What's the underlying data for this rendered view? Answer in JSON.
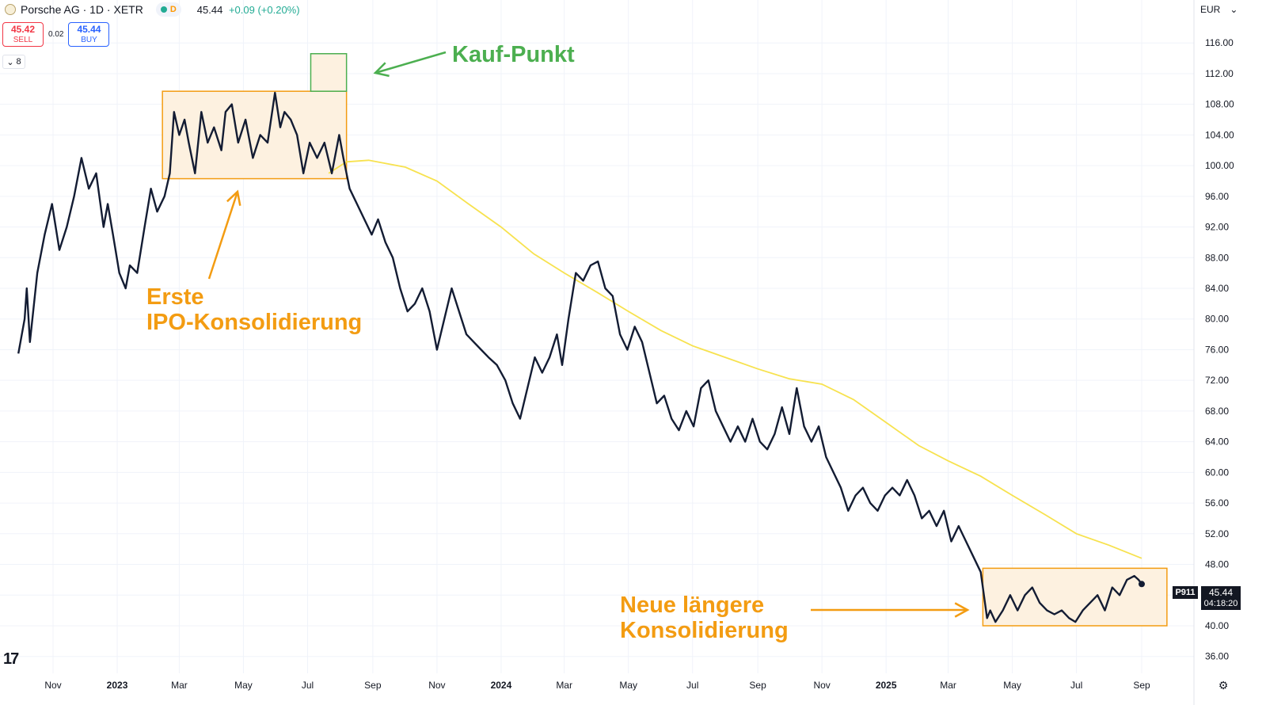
{
  "header": {
    "symbol": "Porsche AG · 1D · XETR",
    "session_badge": "D",
    "last": "45.44",
    "change": "+0.09 (+0.20%)"
  },
  "trade": {
    "sell_price": "45.42",
    "sell_label": "SELL",
    "spread": "0.02",
    "buy_price": "45.44",
    "buy_label": "BUY"
  },
  "indicators_count": "8",
  "currency": "EUR",
  "price_tag": {
    "ticker": "P911",
    "price": "45.44",
    "countdown": "04:18:20"
  },
  "annotations": {
    "buy_point": "Kauf-Punkt",
    "first_consolidation_line1": "Erste",
    "first_consolidation_line2": "IPO-Konsolidierung",
    "new_consolidation_line1": "Neue längere",
    "new_consolidation_line2": "Konsolidierung"
  },
  "colors": {
    "price_line": "#131c33",
    "ma_line": "#f7e24f",
    "annotation_orange": "#f39c12",
    "annotation_green": "#4caf50",
    "box_fill": "#fdf1e0"
  },
  "chart_data": {
    "type": "line",
    "title": "",
    "xlabel": "",
    "ylabel": "",
    "y_ticks": [
      36,
      40,
      44,
      48,
      52,
      56,
      60,
      64,
      68,
      72,
      76,
      80,
      84,
      88,
      92,
      96,
      100,
      104,
      108,
      112,
      116
    ],
    "ylim": [
      33.8,
      121.6
    ],
    "x_ticks": [
      {
        "label": "Nov",
        "x": "2022-11-01",
        "year": false
      },
      {
        "label": "2023",
        "x": "2023-01-01",
        "year": true
      },
      {
        "label": "Mar",
        "x": "2023-03-01",
        "year": false
      },
      {
        "label": "May",
        "x": "2023-05-01",
        "year": false
      },
      {
        "label": "Jul",
        "x": "2023-07-01",
        "year": false
      },
      {
        "label": "Sep",
        "x": "2023-09-01",
        "year": false
      },
      {
        "label": "Nov",
        "x": "2023-11-01",
        "year": false
      },
      {
        "label": "2024",
        "x": "2024-01-01",
        "year": true
      },
      {
        "label": "Mar",
        "x": "2024-03-01",
        "year": false
      },
      {
        "label": "May",
        "x": "2024-05-01",
        "year": false
      },
      {
        "label": "Jul",
        "x": "2024-07-01",
        "year": false
      },
      {
        "label": "Sep",
        "x": "2024-09-01",
        "year": false
      },
      {
        "label": "Nov",
        "x": "2024-11-01",
        "year": false
      },
      {
        "label": "2025",
        "x": "2025-01-01",
        "year": true
      },
      {
        "label": "Mar",
        "x": "2025-03-01",
        "year": false
      },
      {
        "label": "May",
        "x": "2025-05-01",
        "year": false
      },
      {
        "label": "Jul",
        "x": "2025-07-01",
        "year": false
      },
      {
        "label": "Sep",
        "x": "2025-09-01",
        "year": false
      }
    ],
    "series": [
      {
        "values": [
          [
            "2022-09-29",
            75.5
          ],
          [
            "2022-10-05",
            80.0
          ],
          [
            "2022-10-07",
            84.0
          ],
          [
            "2022-10-10",
            77.0
          ],
          [
            "2022-10-17",
            86.0
          ],
          [
            "2022-10-24",
            91.0
          ],
          [
            "2022-10-31",
            95.0
          ],
          [
            "2022-11-07",
            89.0
          ],
          [
            "2022-11-14",
            92.0
          ],
          [
            "2022-11-21",
            96.0
          ],
          [
            "2022-11-28",
            101.0
          ],
          [
            "2022-12-05",
            97.0
          ],
          [
            "2022-12-12",
            99.0
          ],
          [
            "2022-12-19",
            92.0
          ],
          [
            "2022-12-23",
            95.0
          ],
          [
            "2022-12-28",
            91.0
          ],
          [
            "2023-01-03",
            86.0
          ],
          [
            "2023-01-09",
            84.0
          ],
          [
            "2023-01-13",
            87.0
          ],
          [
            "2023-01-20",
            86.0
          ],
          [
            "2023-01-27",
            92.0
          ],
          [
            "2023-02-02",
            97.0
          ],
          [
            "2023-02-08",
            94.0
          ],
          [
            "2023-02-15",
            96.0
          ],
          [
            "2023-02-20",
            99.0
          ],
          [
            "2023-02-24",
            107.0
          ],
          [
            "2023-03-01",
            104.0
          ],
          [
            "2023-03-06",
            106.0
          ],
          [
            "2023-03-10",
            103.0
          ],
          [
            "2023-03-16",
            99.0
          ],
          [
            "2023-03-22",
            107.0
          ],
          [
            "2023-03-28",
            103.0
          ],
          [
            "2023-04-03",
            105.0
          ],
          [
            "2023-04-10",
            102.0
          ],
          [
            "2023-04-14",
            107.0
          ],
          [
            "2023-04-20",
            108.0
          ],
          [
            "2023-04-26",
            103.0
          ],
          [
            "2023-05-03",
            106.0
          ],
          [
            "2023-05-10",
            101.0
          ],
          [
            "2023-05-17",
            104.0
          ],
          [
            "2023-05-24",
            103.0
          ],
          [
            "2023-05-31",
            109.5
          ],
          [
            "2023-06-05",
            105.0
          ],
          [
            "2023-06-09",
            107.0
          ],
          [
            "2023-06-15",
            106.0
          ],
          [
            "2023-06-21",
            104.0
          ],
          [
            "2023-06-27",
            99.0
          ],
          [
            "2023-07-03",
            103.0
          ],
          [
            "2023-07-10",
            101.0
          ],
          [
            "2023-07-17",
            103.0
          ],
          [
            "2023-07-24",
            99.0
          ],
          [
            "2023-07-31",
            104.0
          ],
          [
            "2023-08-04",
            101.0
          ],
          [
            "2023-08-10",
            97.0
          ],
          [
            "2023-08-17",
            95.0
          ],
          [
            "2023-08-24",
            93.0
          ],
          [
            "2023-08-31",
            91.0
          ],
          [
            "2023-09-06",
            93.0
          ],
          [
            "2023-09-13",
            90.0
          ],
          [
            "2023-09-20",
            88.0
          ],
          [
            "2023-09-27",
            84.0
          ],
          [
            "2023-10-04",
            81.0
          ],
          [
            "2023-10-11",
            82.0
          ],
          [
            "2023-10-18",
            84.0
          ],
          [
            "2023-10-25",
            81.0
          ],
          [
            "2023-11-01",
            76.0
          ],
          [
            "2023-11-08",
            80.0
          ],
          [
            "2023-11-15",
            84.0
          ],
          [
            "2023-11-22",
            81.0
          ],
          [
            "2023-11-29",
            78.0
          ],
          [
            "2023-12-06",
            77.0
          ],
          [
            "2023-12-13",
            76.0
          ],
          [
            "2023-12-20",
            75.0
          ],
          [
            "2023-12-28",
            74.0
          ],
          [
            "2024-01-05",
            72.0
          ],
          [
            "2024-01-12",
            69.0
          ],
          [
            "2024-01-19",
            67.0
          ],
          [
            "2024-01-26",
            71.0
          ],
          [
            "2024-02-02",
            75.0
          ],
          [
            "2024-02-09",
            73.0
          ],
          [
            "2024-02-16",
            75.0
          ],
          [
            "2024-02-23",
            78.0
          ],
          [
            "2024-02-28",
            74.0
          ],
          [
            "2024-03-05",
            80.0
          ],
          [
            "2024-03-12",
            86.0
          ],
          [
            "2024-03-19",
            85.0
          ],
          [
            "2024-03-26",
            87.0
          ],
          [
            "2024-04-02",
            87.5
          ],
          [
            "2024-04-09",
            84.0
          ],
          [
            "2024-04-16",
            83.0
          ],
          [
            "2024-04-23",
            78.0
          ],
          [
            "2024-04-30",
            76.0
          ],
          [
            "2024-05-07",
            79.0
          ],
          [
            "2024-05-14",
            77.0
          ],
          [
            "2024-05-21",
            73.0
          ],
          [
            "2024-05-28",
            69.0
          ],
          [
            "2024-06-04",
            70.0
          ],
          [
            "2024-06-11",
            67.0
          ],
          [
            "2024-06-18",
            65.5
          ],
          [
            "2024-06-25",
            68.0
          ],
          [
            "2024-07-02",
            66.0
          ],
          [
            "2024-07-09",
            71.0
          ],
          [
            "2024-07-16",
            72.0
          ],
          [
            "2024-07-23",
            68.0
          ],
          [
            "2024-07-30",
            66.0
          ],
          [
            "2024-08-06",
            64.0
          ],
          [
            "2024-08-13",
            66.0
          ],
          [
            "2024-08-20",
            64.0
          ],
          [
            "2024-08-27",
            67.0
          ],
          [
            "2024-09-03",
            64.0
          ],
          [
            "2024-09-10",
            63.0
          ],
          [
            "2024-09-17",
            65.0
          ],
          [
            "2024-09-24",
            68.5
          ],
          [
            "2024-10-01",
            65.0
          ],
          [
            "2024-10-08",
            71.0
          ],
          [
            "2024-10-15",
            66.0
          ],
          [
            "2024-10-22",
            64.0
          ],
          [
            "2024-10-29",
            66.0
          ],
          [
            "2024-11-05",
            62.0
          ],
          [
            "2024-11-12",
            60.0
          ],
          [
            "2024-11-19",
            58.0
          ],
          [
            "2024-11-26",
            55.0
          ],
          [
            "2024-12-03",
            57.0
          ],
          [
            "2024-12-10",
            58.0
          ],
          [
            "2024-12-17",
            56.0
          ],
          [
            "2024-12-24",
            55.0
          ],
          [
            "2024-12-31",
            57.0
          ],
          [
            "2025-01-07",
            58.0
          ],
          [
            "2025-01-14",
            57.0
          ],
          [
            "2025-01-21",
            59.0
          ],
          [
            "2025-01-28",
            57.0
          ],
          [
            "2025-02-04",
            54.0
          ],
          [
            "2025-02-11",
            55.0
          ],
          [
            "2025-02-18",
            53.0
          ],
          [
            "2025-02-25",
            55.0
          ],
          [
            "2025-03-04",
            51.0
          ],
          [
            "2025-03-11",
            53.0
          ],
          [
            "2025-03-18",
            51.0
          ],
          [
            "2025-03-25",
            49.0
          ],
          [
            "2025-04-01",
            47.0
          ],
          [
            "2025-04-07",
            41.0
          ],
          [
            "2025-04-10",
            42.0
          ],
          [
            "2025-04-15",
            40.5
          ],
          [
            "2025-04-22",
            42.0
          ],
          [
            "2025-04-29",
            44.0
          ],
          [
            "2025-05-06",
            42.0
          ],
          [
            "2025-05-13",
            44.0
          ],
          [
            "2025-05-20",
            45.0
          ],
          [
            "2025-05-27",
            43.0
          ],
          [
            "2025-06-03",
            42.0
          ],
          [
            "2025-06-10",
            41.5
          ],
          [
            "2025-06-17",
            42.0
          ],
          [
            "2025-06-24",
            41.0
          ],
          [
            "2025-06-30",
            40.5
          ],
          [
            "2025-07-07",
            42.0
          ],
          [
            "2025-07-14",
            43.0
          ],
          [
            "2025-07-21",
            44.0
          ],
          [
            "2025-07-28",
            42.0
          ],
          [
            "2025-08-04",
            45.0
          ],
          [
            "2025-08-11",
            44.0
          ],
          [
            "2025-08-18",
            46.0
          ],
          [
            "2025-08-25",
            46.5
          ],
          [
            "2025-08-29",
            46.0
          ],
          [
            "2025-09-01",
            45.44
          ]
        ]
      },
      {
        "values": [
          [
            "2023-07-21",
            99.0
          ],
          [
            "2023-08-07",
            100.5
          ],
          [
            "2023-08-28",
            100.7
          ],
          [
            "2023-10-02",
            99.8
          ],
          [
            "2023-11-01",
            98.0
          ],
          [
            "2023-12-01",
            95.0
          ],
          [
            "2024-01-01",
            92.0
          ],
          [
            "2024-02-01",
            88.5
          ],
          [
            "2024-03-01",
            86.0
          ],
          [
            "2024-04-01",
            83.5
          ],
          [
            "2024-05-01",
            81.0
          ],
          [
            "2024-06-01",
            78.5
          ],
          [
            "2024-07-01",
            76.5
          ],
          [
            "2024-08-01",
            75.0
          ],
          [
            "2024-09-01",
            73.5
          ],
          [
            "2024-10-01",
            72.2
          ],
          [
            "2024-11-01",
            71.5
          ],
          [
            "2024-12-01",
            69.5
          ],
          [
            "2025-01-01",
            66.5
          ],
          [
            "2025-02-01",
            63.5
          ],
          [
            "2025-03-01",
            61.5
          ],
          [
            "2025-04-01",
            59.5
          ],
          [
            "2025-05-01",
            57.0
          ],
          [
            "2025-06-01",
            54.5
          ],
          [
            "2025-07-01",
            52.0
          ],
          [
            "2025-08-01",
            50.5
          ],
          [
            "2025-09-01",
            48.8
          ]
        ]
      }
    ],
    "boxes": [
      {
        "name": "first-consolidation",
        "x0": "2023-02-13",
        "x1": "2023-08-07",
        "y0": 98.3,
        "y1": 109.7
      },
      {
        "name": "buy-point",
        "x0": "2023-07-04",
        "x1": "2023-08-07",
        "y0": 109.7,
        "y1": 114.6
      },
      {
        "name": "new-consolidation",
        "x0": "2025-04-03",
        "x1": "2025-09-25",
        "y0": 40.0,
        "y1": 47.5
      }
    ],
    "grid": true,
    "legend": "none"
  }
}
